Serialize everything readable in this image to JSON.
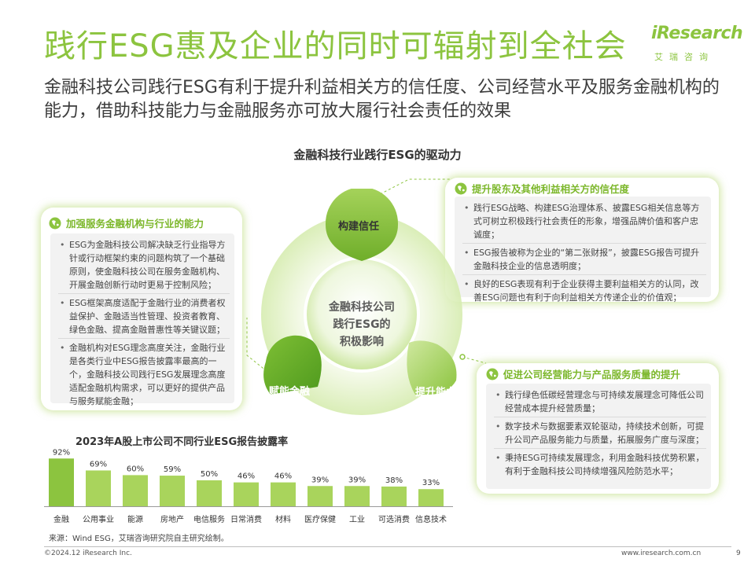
{
  "header": {
    "title": "践行ESG惠及企业的同时可辐射到全社会",
    "subtitle": "金融科技公司践行ESG有利于提升利益相关方的信任度、公司经营水平及服务金融机构的能力，借助科技能力与金融服务亦可放大履行社会责任的效果"
  },
  "logo": {
    "word": "iResearch",
    "sub": "艾瑞咨询"
  },
  "section_title": "金融科技行业践行ESG的驱动力",
  "diagram": {
    "hub_line1": "金融科技公司",
    "hub_line2": "践行ESG的",
    "hub_line3": "积极影响",
    "petal_top": "构建信任",
    "petal_left": "赋能金融",
    "petal_right": "提升能力"
  },
  "cards": {
    "left": {
      "heading": "加强服务金融机构与行业的能力",
      "bullets": [
        "ESG为金融科技公司解决缺乏行业指导方针或行动框架约束的问题构筑了一个基础原则，使金融科技公司在服务金融机构、开展金融创新行动时更易于控制风险；",
        "ESG框架高度适配于金融行业的消费者权益保护、金融适当性管理、投资者教育、绿色金融、提高金融普惠性等关键议题；",
        "金融机构对ESG理念高度关注，金融行业是各类行业中ESG报告披露率最高的一个，金融科技公司践行ESG发展理念高度适配金融机构需求，可以更好的提供产品与服务赋能金融；"
      ]
    },
    "top_right": {
      "heading": "提升股东及其他利益相关方的信任度",
      "bullets": [
        "践行ESG战略、构建ESG治理体系、披露ESG相关信息等方式可树立积极践行社会责任的形象，增强品牌价值和客户忠诚度；",
        "ESG报告被称为企业的“第二张财报”，披露ESG报告可提升金融科技企业的信息透明度；",
        "良好的ESG表现有利于企业获得主要利益相关方的认同，改善ESG问题也有利于向利益相关方传递企业的价值观；"
      ]
    },
    "bottom_right": {
      "heading": "促进公司经营能力与产品服务质量的提升",
      "bullets": [
        "践行绿色低碳经营理念与可持续发展理念可降低公司经营成本提升经营质量；",
        "数字技术与数据要素双轮驱动，持续技术创新，可提升公司产品服务能力与质量，拓展服务广度与深度；",
        "秉持ESG可持续发展理念，利用金融科技优势积累，有利于金融科技公司持续增强风险防范水平；"
      ]
    }
  },
  "chart_data": {
    "type": "bar",
    "title": "2023年A股上市公司不同行业ESG报告披露率",
    "categories": [
      "金融",
      "公用事业",
      "能源",
      "房地产",
      "电信服务",
      "日常消费",
      "材料",
      "医疗保健",
      "工业",
      "可选消费",
      "信息技术"
    ],
    "values": [
      92,
      69,
      60,
      59,
      50,
      46,
      46,
      39,
      39,
      38,
      33
    ],
    "data_labels": [
      "92%",
      "69%",
      "60%",
      "59%",
      "50%",
      "46%",
      "46%",
      "39%",
      "39%",
      "38%",
      "33%"
    ],
    "ylim": [
      0,
      100
    ],
    "grid": false,
    "colors": {
      "highlight": "#8cc43f",
      "base": "#a9d45c"
    }
  },
  "source": "来源：Wind ESG，艾瑞咨询研究院自主研究绘制。",
  "footer": {
    "copyright": "©2024.12 iResearch Inc.",
    "url": "www.iresearch.com.cn",
    "page": "9"
  },
  "colors": {
    "accent": "#8cc43f",
    "accent_dark": "#6fae2a",
    "text": "#333333"
  }
}
